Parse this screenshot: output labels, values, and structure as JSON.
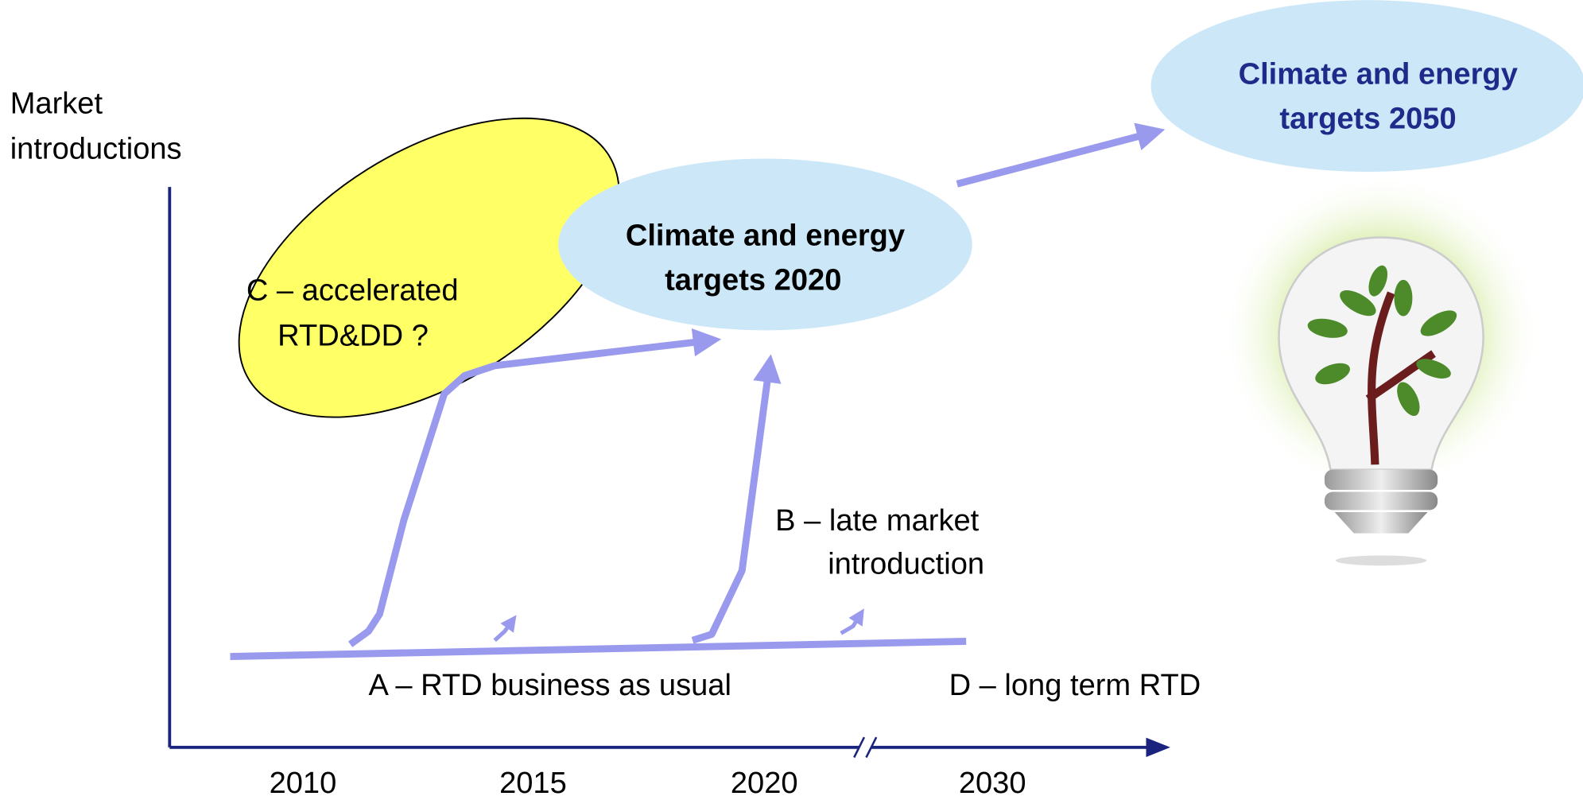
{
  "axis": {
    "label": [
      "Market",
      "introductions"
    ],
    "ticks": [
      "2010",
      "2015",
      "2020",
      "2030"
    ]
  },
  "scenarios": [
    {
      "label": [
        "A – RTD business as usual"
      ]
    },
    {
      "label": [
        "B – late market",
        "introduction"
      ]
    },
    {
      "label": [
        "C – accelerated",
        "RTD&DD ?"
      ]
    },
    {
      "label": [
        "D – long term RTD"
      ]
    }
  ],
  "targets": [
    {
      "label": [
        "Climate and energy",
        "targets 2020"
      ]
    },
    {
      "label": [
        "Climate and energy",
        "targets 2050"
      ]
    }
  ]
}
